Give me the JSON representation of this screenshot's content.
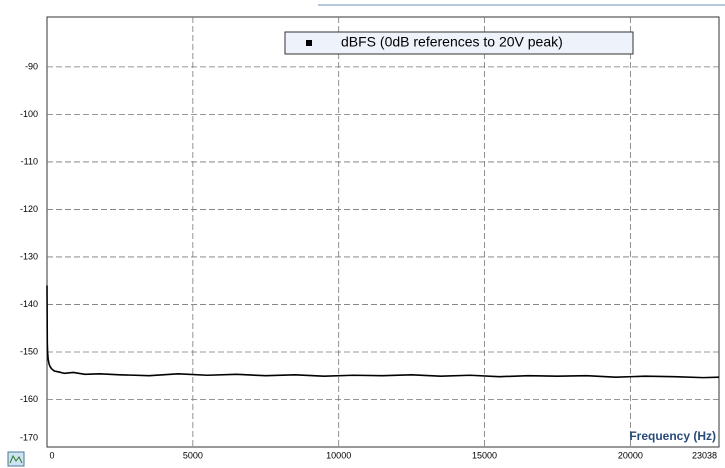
{
  "chart_data": {
    "type": "line",
    "legend": "dBFS (0dB references to 20V peak)",
    "x_label": "Frequency (Hz)",
    "x": [
      0,
      10,
      20,
      40,
      70,
      100,
      150,
      250,
      400,
      600,
      900,
      1300,
      1800,
      2500,
      3500,
      4500,
      5500,
      6500,
      7500,
      8500,
      9500,
      10500,
      11500,
      12500,
      13500,
      14500,
      15500,
      16500,
      17500,
      18500,
      19500,
      20500,
      21500,
      22500,
      23038
    ],
    "series": [
      {
        "name": "dBFS (0dB references to 20V peak)",
        "color": "#000000",
        "values": [
          -136,
          -148,
          -150,
          -151.5,
          -152.5,
          -153,
          -153.5,
          -154,
          -154.2,
          -154.5,
          -154.3,
          -154.7,
          -154.6,
          -154.8,
          -155,
          -154.6,
          -154.9,
          -154.7,
          -155,
          -154.8,
          -155.1,
          -154.9,
          -155,
          -154.8,
          -155.1,
          -154.9,
          -155.2,
          -155,
          -155.1,
          -155,
          -155.3,
          -155.1,
          -155.2,
          -155.4,
          -155.3
        ]
      }
    ],
    "xlim": [
      0,
      23038
    ],
    "xticks": [
      0,
      5000,
      10000,
      15000,
      20000,
      23038
    ],
    "ylim": [
      -170,
      -79.5
    ],
    "yticks": [
      -90,
      -100,
      -110,
      -120,
      -130,
      -140,
      -150,
      -160,
      -170
    ],
    "grid": true,
    "legend_position": "top"
  }
}
